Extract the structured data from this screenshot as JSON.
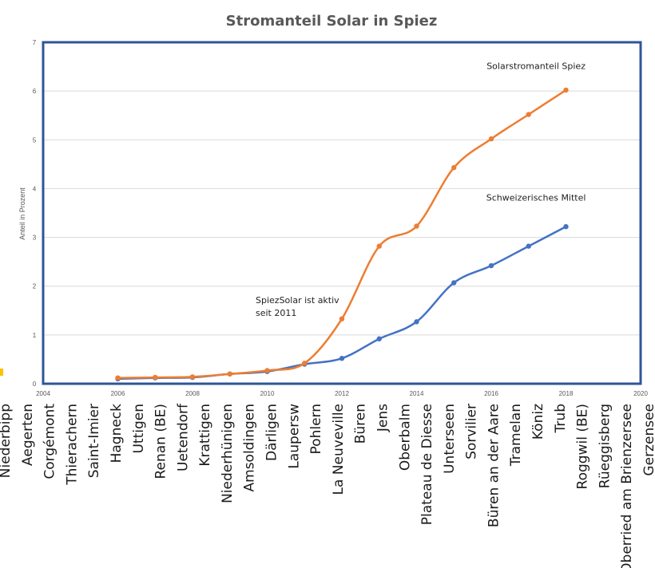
{
  "chart_data": {
    "type": "line",
    "title": "Stromanteil Solar in Spiez",
    "ylabel": "Anteil in Prozent",
    "xlabel": "",
    "xlim": [
      2004,
      2020
    ],
    "ylim": [
      0,
      7
    ],
    "x_ticks": [
      2004,
      2006,
      2008,
      2010,
      2012,
      2014,
      2016,
      2018,
      2020
    ],
    "y_ticks": [
      0,
      1,
      2,
      3,
      4,
      5,
      6,
      7
    ],
    "grid": true,
    "smooth": true,
    "series": [
      {
        "name": "Solarstromanteil Spiez",
        "color": "#ED7D31",
        "x": [
          2006,
          2007,
          2008,
          2009,
          2010,
          2011,
          2012,
          2013,
          2014,
          2015,
          2016,
          2017,
          2018
        ],
        "y": [
          0.12,
          0.13,
          0.14,
          0.2,
          0.27,
          0.42,
          1.33,
          2.82,
          3.23,
          4.43,
          5.02,
          5.52,
          6.02
        ]
      },
      {
        "name": "Schweizerisches Mittel",
        "color": "#4472C4",
        "x": [
          2006,
          2007,
          2008,
          2009,
          2010,
          2011,
          2012,
          2013,
          2014,
          2015,
          2016,
          2017,
          2018
        ],
        "y": [
          0.1,
          0.12,
          0.13,
          0.2,
          0.25,
          0.4,
          0.52,
          0.92,
          1.27,
          2.07,
          2.42,
          2.82,
          3.22
        ]
      }
    ],
    "annotations": [
      {
        "lines": [
          "Solarstromanteil Spiez"
        ],
        "x": 2017.2,
        "y": 6.45
      },
      {
        "lines": [
          "Schweizerisches Mittel"
        ],
        "x": 2017.2,
        "y": 3.75
      },
      {
        "lines": [
          "SpiezSolar ist aktiv",
          "seit 2011"
        ],
        "x": 2009.5,
        "y": 1.65
      }
    ],
    "frame_color": "#2F5597",
    "grid_color": "#D9D9D9",
    "overlay_place_labels": [
      "Niederbipp",
      "Aegerten",
      "Corgémont",
      "Thierachern",
      "Saint-Imier",
      "Hagneck",
      "Uttigen",
      "Renan (BE)",
      "Uetendorf",
      "Krattigen",
      "Niederhünigen",
      "Amsoldingen",
      "Därligen",
      "Laupersw",
      "Pohlern",
      "La Neuveville",
      "Büren",
      "Jens",
      "Oberbalm",
      "Plateau de Diesse",
      "Unterseen",
      "Sorvilier",
      "Büren an der Aare",
      "Tramelan",
      "Köniz",
      "Trub",
      "Roggwil (BE)",
      "Rüeggisberg",
      "Oberried am Brienzersee",
      "Gerzensee"
    ]
  }
}
